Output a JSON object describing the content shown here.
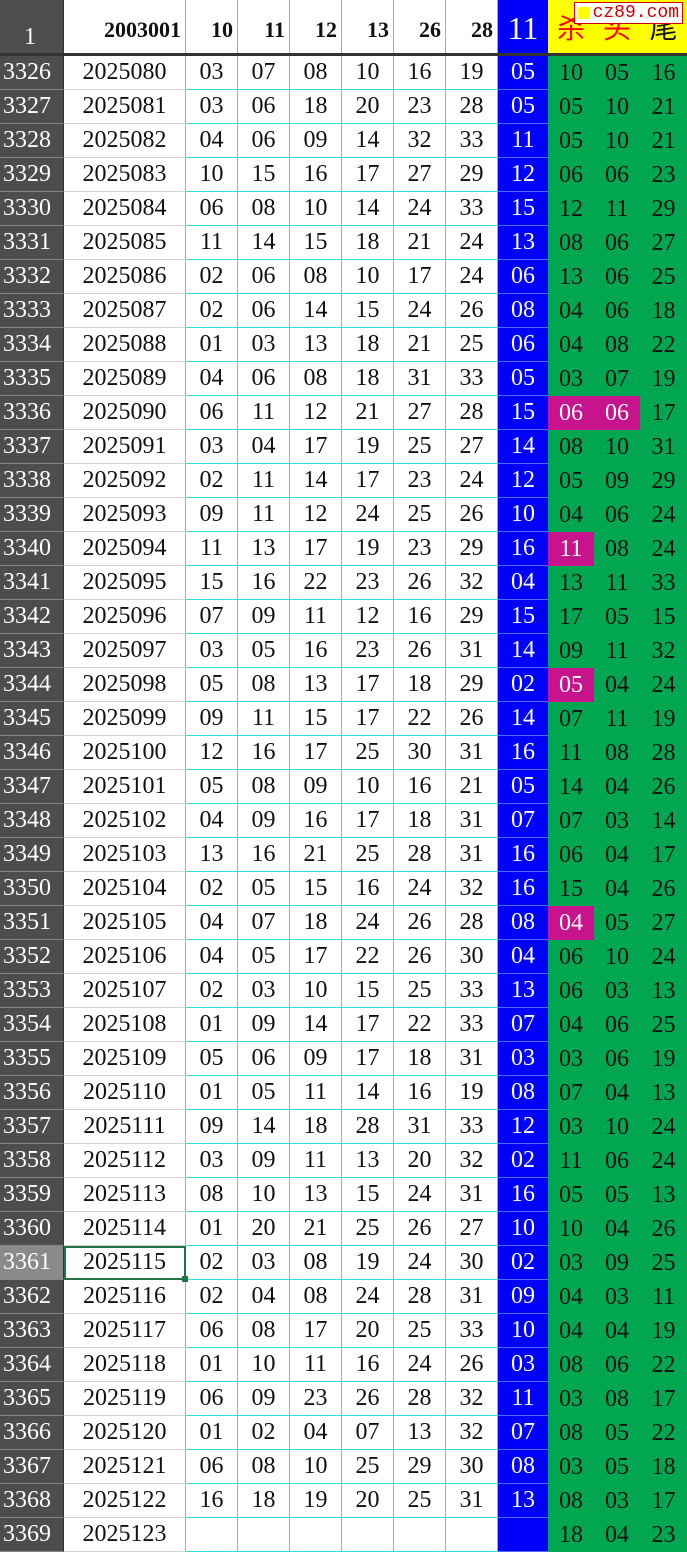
{
  "header": {
    "row_number": "1",
    "issue": "2003001",
    "numbers": [
      "10",
      "11",
      "12",
      "13",
      "26",
      "28"
    ],
    "special": "11",
    "labels": [
      "杀",
      "头",
      "尾"
    ]
  },
  "watermark": "cz89.com",
  "colors": {
    "special_bg": "#0000ff",
    "stats_bg": "#00a650",
    "highlight": "#c8148c",
    "header_stats_bg": "#ffff00",
    "label_red": "#ff0000",
    "row_header_bg": "#4d4d4d",
    "grid": "#33dede"
  },
  "selected_row": "3361",
  "rows": [
    [
      "3326",
      "2025080",
      "03",
      "07",
      "08",
      "10",
      "16",
      "19",
      "05",
      "10",
      "05",
      "16"
    ],
    [
      "3327",
      "2025081",
      "03",
      "06",
      "18",
      "20",
      "23",
      "28",
      "05",
      "05",
      "10",
      "21"
    ],
    [
      "3328",
      "2025082",
      "04",
      "06",
      "09",
      "14",
      "32",
      "33",
      "11",
      "05",
      "10",
      "21"
    ],
    [
      "3329",
      "2025083",
      "10",
      "15",
      "16",
      "17",
      "27",
      "29",
      "12",
      "06",
      "06",
      "23"
    ],
    [
      "3330",
      "2025084",
      "06",
      "08",
      "10",
      "14",
      "24",
      "33",
      "15",
      "12",
      "11",
      "29"
    ],
    [
      "3331",
      "2025085",
      "11",
      "14",
      "15",
      "18",
      "21",
      "24",
      "13",
      "08",
      "06",
      "27"
    ],
    [
      "3332",
      "2025086",
      "02",
      "06",
      "08",
      "10",
      "17",
      "24",
      "06",
      "13",
      "06",
      "25"
    ],
    [
      "3333",
      "2025087",
      "02",
      "06",
      "14",
      "15",
      "24",
      "26",
      "08",
      "04",
      "06",
      "18"
    ],
    [
      "3334",
      "2025088",
      "01",
      "03",
      "13",
      "18",
      "21",
      "25",
      "06",
      "04",
      "08",
      "22"
    ],
    [
      "3335",
      "2025089",
      "04",
      "06",
      "08",
      "18",
      "31",
      "33",
      "05",
      "03",
      "07",
      "19"
    ],
    [
      "3336",
      "2025090",
      "06",
      "11",
      "12",
      "21",
      "27",
      "28",
      "15",
      "06",
      "06",
      "17"
    ],
    [
      "3337",
      "2025091",
      "03",
      "04",
      "17",
      "19",
      "25",
      "27",
      "14",
      "08",
      "10",
      "31"
    ],
    [
      "3338",
      "2025092",
      "02",
      "11",
      "14",
      "17",
      "23",
      "24",
      "12",
      "05",
      "09",
      "29"
    ],
    [
      "3339",
      "2025093",
      "09",
      "11",
      "12",
      "24",
      "25",
      "26",
      "10",
      "04",
      "06",
      "24"
    ],
    [
      "3340",
      "2025094",
      "11",
      "13",
      "17",
      "19",
      "23",
      "29",
      "16",
      "11",
      "08",
      "24"
    ],
    [
      "3341",
      "2025095",
      "15",
      "16",
      "22",
      "23",
      "26",
      "32",
      "04",
      "13",
      "11",
      "33"
    ],
    [
      "3342",
      "2025096",
      "07",
      "09",
      "11",
      "12",
      "16",
      "29",
      "15",
      "17",
      "05",
      "15"
    ],
    [
      "3343",
      "2025097",
      "03",
      "05",
      "16",
      "23",
      "26",
      "31",
      "14",
      "09",
      "11",
      "32"
    ],
    [
      "3344",
      "2025098",
      "05",
      "08",
      "13",
      "17",
      "18",
      "29",
      "02",
      "05",
      "04",
      "24"
    ],
    [
      "3345",
      "2025099",
      "09",
      "11",
      "15",
      "17",
      "22",
      "26",
      "14",
      "07",
      "11",
      "19"
    ],
    [
      "3346",
      "2025100",
      "12",
      "16",
      "17",
      "25",
      "30",
      "31",
      "16",
      "11",
      "08",
      "28"
    ],
    [
      "3347",
      "2025101",
      "05",
      "08",
      "09",
      "10",
      "16",
      "21",
      "05",
      "14",
      "04",
      "26"
    ],
    [
      "3348",
      "2025102",
      "04",
      "09",
      "16",
      "17",
      "18",
      "31",
      "07",
      "07",
      "03",
      "14"
    ],
    [
      "3349",
      "2025103",
      "13",
      "16",
      "21",
      "25",
      "28",
      "31",
      "16",
      "06",
      "04",
      "17"
    ],
    [
      "3350",
      "2025104",
      "02",
      "05",
      "15",
      "16",
      "24",
      "32",
      "16",
      "15",
      "04",
      "26"
    ],
    [
      "3351",
      "2025105",
      "04",
      "07",
      "18",
      "24",
      "26",
      "28",
      "08",
      "04",
      "05",
      "27"
    ],
    [
      "3352",
      "2025106",
      "04",
      "05",
      "17",
      "22",
      "26",
      "30",
      "04",
      "06",
      "10",
      "24"
    ],
    [
      "3353",
      "2025107",
      "02",
      "03",
      "10",
      "15",
      "25",
      "33",
      "13",
      "06",
      "03",
      "13"
    ],
    [
      "3354",
      "2025108",
      "01",
      "09",
      "14",
      "17",
      "22",
      "33",
      "07",
      "04",
      "06",
      "25"
    ],
    [
      "3355",
      "2025109",
      "05",
      "06",
      "09",
      "17",
      "18",
      "31",
      "03",
      "03",
      "06",
      "19"
    ],
    [
      "3356",
      "2025110",
      "01",
      "05",
      "11",
      "14",
      "16",
      "19",
      "08",
      "07",
      "04",
      "13"
    ],
    [
      "3357",
      "2025111",
      "09",
      "14",
      "18",
      "28",
      "31",
      "33",
      "12",
      "03",
      "10",
      "24"
    ],
    [
      "3358",
      "2025112",
      "03",
      "09",
      "11",
      "13",
      "20",
      "32",
      "02",
      "11",
      "06",
      "24"
    ],
    [
      "3359",
      "2025113",
      "08",
      "10",
      "13",
      "15",
      "24",
      "31",
      "16",
      "05",
      "05",
      "13"
    ],
    [
      "3360",
      "2025114",
      "01",
      "20",
      "21",
      "25",
      "26",
      "27",
      "10",
      "10",
      "04",
      "26"
    ],
    [
      "3361",
      "2025115",
      "02",
      "03",
      "08",
      "19",
      "24",
      "30",
      "02",
      "03",
      "09",
      "25"
    ],
    [
      "3362",
      "2025116",
      "02",
      "04",
      "08",
      "24",
      "28",
      "31",
      "09",
      "04",
      "03",
      "11"
    ],
    [
      "3363",
      "2025117",
      "06",
      "08",
      "17",
      "20",
      "25",
      "33",
      "10",
      "04",
      "04",
      "19"
    ],
    [
      "3364",
      "2025118",
      "01",
      "10",
      "11",
      "16",
      "24",
      "26",
      "03",
      "08",
      "06",
      "22"
    ],
    [
      "3365",
      "2025119",
      "06",
      "09",
      "23",
      "26",
      "28",
      "32",
      "11",
      "03",
      "08",
      "17"
    ],
    [
      "3366",
      "2025120",
      "01",
      "02",
      "04",
      "07",
      "13",
      "32",
      "07",
      "08",
      "05",
      "22"
    ],
    [
      "3367",
      "2025121",
      "06",
      "08",
      "10",
      "25",
      "29",
      "30",
      "08",
      "03",
      "05",
      "18"
    ],
    [
      "3368",
      "2025122",
      "16",
      "18",
      "19",
      "20",
      "25",
      "31",
      "13",
      "08",
      "03",
      "17"
    ],
    [
      "3369",
      "2025123",
      "",
      "",
      "",
      "",
      "",
      "",
      "",
      "18",
      "04",
      "23"
    ]
  ],
  "highlighted_cells": [
    {
      "row": "3336",
      "col": "杀"
    },
    {
      "row": "3336",
      "col": "头"
    },
    {
      "row": "3340",
      "col": "杀"
    },
    {
      "row": "3344",
      "col": "杀"
    },
    {
      "row": "3351",
      "col": "杀"
    }
  ]
}
